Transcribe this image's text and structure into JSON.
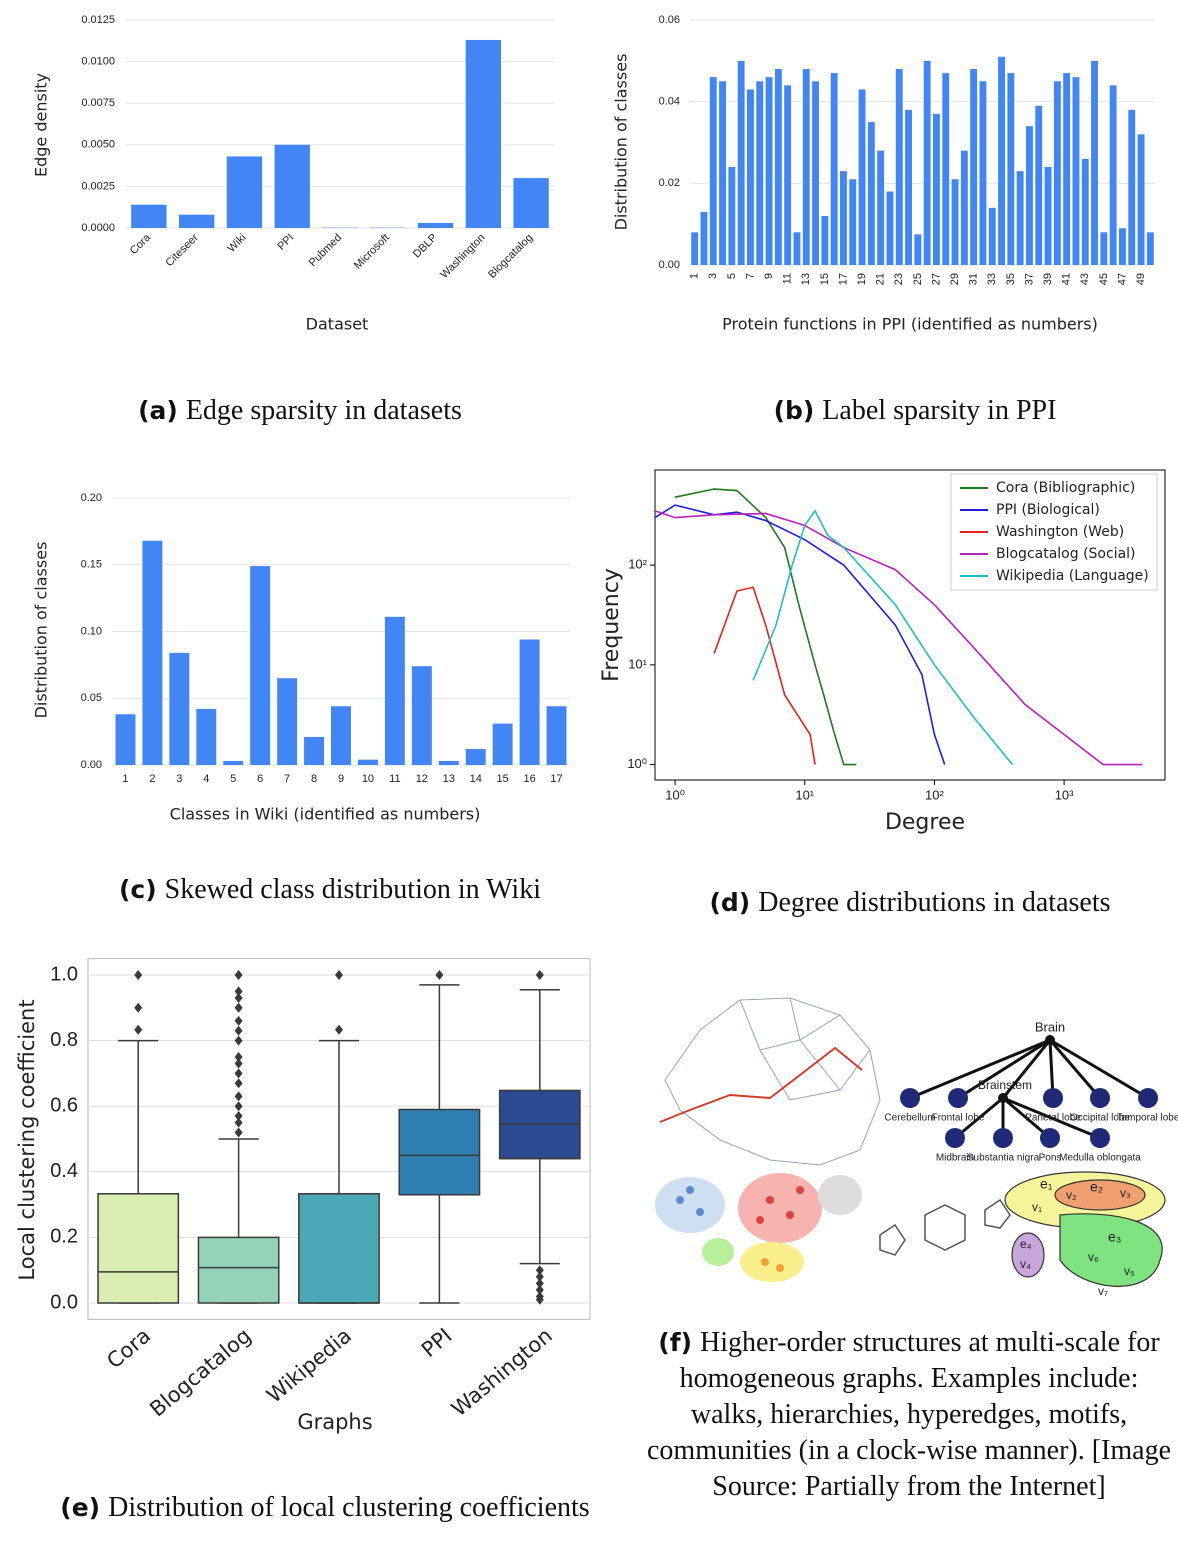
{
  "chart_data": [
    {
      "type": "bar",
      "color": "#4285f4",
      "xlabel": "Dataset",
      "ylabel": "Edge density",
      "xtick_rotation": -45,
      "grid": true,
      "categories": [
        "Cora",
        "Citeseer",
        "Wiki",
        "PPI",
        "Pubmed",
        "Microsoft",
        "DBLP",
        "Washington",
        "Blogcatalog"
      ],
      "values": [
        0.0014,
        0.0008,
        0.0043,
        0.005,
        2e-05,
        2e-05,
        0.0003,
        0.0113,
        0.003
      ],
      "ylim": [
        0,
        0.0125
      ],
      "yticks": [
        {
          "value": 0,
          "label": "0.0000"
        },
        {
          "value": 0.0025,
          "label": "0.0025"
        },
        {
          "value": 0.005,
          "label": "0.0050"
        },
        {
          "value": 0.0075,
          "label": "0.0075"
        },
        {
          "value": 0.01,
          "label": "0.0100"
        },
        {
          "value": 0.0125,
          "label": "0.0125"
        }
      ]
    },
    {
      "type": "bar",
      "color": "#4285f4",
      "xlabel": "Protein functions in PPI (identified as numbers)",
      "ylabel": "Distribution of classes",
      "xtick_rotation": -90,
      "grid": true,
      "categories": [
        "1",
        null,
        "3",
        null,
        "5",
        null,
        "7",
        null,
        "9",
        null,
        "11",
        null,
        "13",
        null,
        "15",
        null,
        "17",
        null,
        "19",
        null,
        "21",
        null,
        "23",
        null,
        "25",
        null,
        "27",
        null,
        "29",
        null,
        "31",
        null,
        "33",
        null,
        "35",
        null,
        "37",
        null,
        "39",
        null,
        "41",
        null,
        "43",
        null,
        "45",
        null,
        "47",
        null,
        "49",
        null
      ],
      "values": [
        0.008,
        0.013,
        0.046,
        0.045,
        0.024,
        0.05,
        0.043,
        0.045,
        0.046,
        0.048,
        0.044,
        0.008,
        0.048,
        0.045,
        0.012,
        0.047,
        0.023,
        0.021,
        0.043,
        0.035,
        0.028,
        0.018,
        0.048,
        0.038,
        0.0075,
        0.05,
        0.037,
        0.047,
        0.021,
        0.028,
        0.048,
        0.045,
        0.014,
        0.051,
        0.047,
        0.023,
        0.034,
        0.039,
        0.024,
        0.045,
        0.047,
        0.046,
        0.026,
        0.05,
        0.008,
        0.044,
        0.009,
        0.038,
        0.032,
        0.008
      ],
      "ylim": [
        0,
        0.06
      ],
      "yticks": [
        {
          "value": 0,
          "label": "0.00"
        },
        {
          "value": 0.02,
          "label": "0.02"
        },
        {
          "value": 0.04,
          "label": "0.04"
        },
        {
          "value": 0.06,
          "label": "0.06"
        }
      ]
    },
    {
      "type": "bar",
      "color": "#4285f4",
      "xlabel": "Classes in Wiki (identified as numbers)",
      "ylabel": "Distribution of classes",
      "xtick_rotation": 0,
      "grid": true,
      "categories": [
        "1",
        "2",
        "3",
        "4",
        "5",
        "6",
        "7",
        "8",
        "9",
        "10",
        "11",
        "12",
        "13",
        "14",
        "15",
        "16",
        "17"
      ],
      "values": [
        0.038,
        0.168,
        0.084,
        0.042,
        0.003,
        0.149,
        0.065,
        0.021,
        0.044,
        0.004,
        0.111,
        0.074,
        0.003,
        0.012,
        0.031,
        0.094,
        0.044
      ],
      "ylim": [
        0,
        0.2
      ],
      "yticks": [
        {
          "value": 0,
          "label": "0.00"
        },
        {
          "value": 0.05,
          "label": "0.05"
        },
        {
          "value": 0.1,
          "label": "0.10"
        },
        {
          "value": 0.15,
          "label": "0.15"
        },
        {
          "value": 0.2,
          "label": "0.20"
        }
      ]
    },
    {
      "type": "line",
      "xlabel": "Degree",
      "ylabel": "Frequency",
      "xscale": "log",
      "yscale": "log",
      "legend": "upper right",
      "xlim": [
        0.7,
        6000
      ],
      "ylim": [
        0.7,
        900
      ],
      "xticks": [
        {
          "value": 1,
          "label": "10⁰"
        },
        {
          "value": 10,
          "label": "10¹"
        },
        {
          "value": 100,
          "label": "10²"
        },
        {
          "value": 1000,
          "label": "10³"
        }
      ],
      "yticks": [
        {
          "value": 1,
          "label": "10⁰"
        },
        {
          "value": 10,
          "label": "10¹"
        },
        {
          "value": 100,
          "label": "10²"
        }
      ],
      "series": [
        {
          "name": "Cora (Bibliographic)",
          "color": "#1f7a1f",
          "x": [
            1,
            2,
            3,
            5,
            7,
            9,
            12,
            14,
            17,
            20,
            25
          ],
          "values": [
            480,
            580,
            560,
            300,
            150,
            40,
            10,
            5,
            2,
            1,
            1
          ]
        },
        {
          "name": "PPI (Biological)",
          "color": "#1f1fe0",
          "x": [
            0.7,
            1,
            2,
            3,
            5,
            10,
            20,
            50,
            80,
            100,
            120
          ],
          "values": [
            300,
            400,
            320,
            340,
            280,
            180,
            100,
            25,
            8,
            2,
            1
          ]
        },
        {
          "name": "Washington (Web)",
          "color": "#e81f1f",
          "x": [
            2,
            3,
            4,
            5,
            7,
            9,
            11,
            12
          ],
          "values": [
            13,
            55,
            60,
            25,
            5,
            3,
            2,
            1
          ]
        },
        {
          "name": "Blogcatalog (Social)",
          "color": "#bb1fbb",
          "x": [
            0.7,
            1,
            2,
            5,
            10,
            20,
            50,
            100,
            200,
            500,
            1000,
            2000,
            4000
          ],
          "values": [
            350,
            300,
            320,
            330,
            250,
            150,
            90,
            40,
            15,
            4,
            2,
            1,
            1
          ]
        },
        {
          "name": "Wikipedia (Language)",
          "color": "#1fbfbf",
          "x": [
            4,
            6,
            8,
            10,
            12,
            15,
            20,
            50,
            100,
            200,
            400
          ],
          "values": [
            7,
            25,
            100,
            250,
            350,
            200,
            150,
            40,
            10,
            3,
            1
          ]
        }
      ]
    },
    {
      "type": "box",
      "xlabel": "Graphs",
      "ylabel": "Local clustering coefficient",
      "grid": true,
      "categories": [
        "Cora",
        "Blogcatalog",
        "Wikipedia",
        "PPI",
        "Washington"
      ],
      "colors": [
        "#d9ecb1",
        "#94d2b9",
        "#4aa9b5",
        "#2e7eb1",
        "#2b4a91"
      ],
      "ylim": [
        -0.05,
        1.05
      ],
      "yticks": [
        {
          "value": 0,
          "label": "0.0"
        },
        0.2,
        0.4,
        0.6,
        0.8,
        {
          "value": 1,
          "label": "1.0"
        }
      ],
      "boxes": [
        {
          "whislo": 0,
          "q1": 0,
          "med": 0.095,
          "q3": 0.333,
          "whishi": 0.8,
          "fliers": [
            0.833,
            0.9,
            1
          ]
        },
        {
          "whislo": 0,
          "q1": 0,
          "med": 0.108,
          "q3": 0.2,
          "whishi": 0.5,
          "fliers": [
            0.52,
            0.55,
            0.57,
            0.6,
            0.63,
            0.67,
            0.7,
            0.73,
            0.75,
            0.8,
            0.83,
            0.86,
            0.9,
            0.93,
            0.95,
            1
          ]
        },
        {
          "whislo": 0,
          "q1": 0,
          "med": 0,
          "q3": 0.333,
          "whishi": 0.8,
          "fliers": [
            0.833,
            1
          ]
        },
        {
          "whislo": 0,
          "q1": 0.33,
          "med": 0.45,
          "q3": 0.59,
          "whishi": 0.97,
          "fliers": [
            1
          ]
        },
        {
          "whislo": 0.12,
          "q1": 0.44,
          "med": 0.545,
          "q3": 0.648,
          "whishi": 0.955,
          "fliers": [
            0.01,
            0.02,
            0.04,
            0.06,
            0.08,
            0.1,
            1
          ]
        }
      ]
    }
  ],
  "captions": [
    {
      "label": "(a)",
      "text": "Edge sparsity in datasets"
    },
    {
      "label": "(b)",
      "text": "Label sparsity in PPI"
    },
    {
      "label": "(c)",
      "text": "Skewed class distribution in Wiki"
    },
    {
      "label": "(d)",
      "text": "Degree distributions in datasets"
    },
    {
      "label": "(e)",
      "text": "Distribution of local clustering coefficients"
    },
    {
      "label": "(f)",
      "text": "Higher-order structures at multi-scale for homogeneous graphs. Examples include: walks, hierarchies, hyperedges, motifs, communities (in a clock-wise manner). [Image Source: Partially from the Internet]"
    }
  ],
  "figure_f": {
    "root": "Brain",
    "brainstem": "Brainstem",
    "lobes": [
      "Cerebellum",
      "Frontal lobe",
      "Parietal lobe",
      "Occipital lobe",
      "Temporal lobe"
    ],
    "brainstem_parts": [
      "Midbrain",
      "Substantia nigra",
      "Pons",
      "Medulla oblongata"
    ],
    "hyperedges": [
      "e₁",
      "e₂",
      "e₃",
      "e₄"
    ],
    "vertices": [
      "v₁",
      "v₂",
      "v₃",
      "v₄",
      "v₅",
      "v₆",
      "v₇"
    ]
  }
}
